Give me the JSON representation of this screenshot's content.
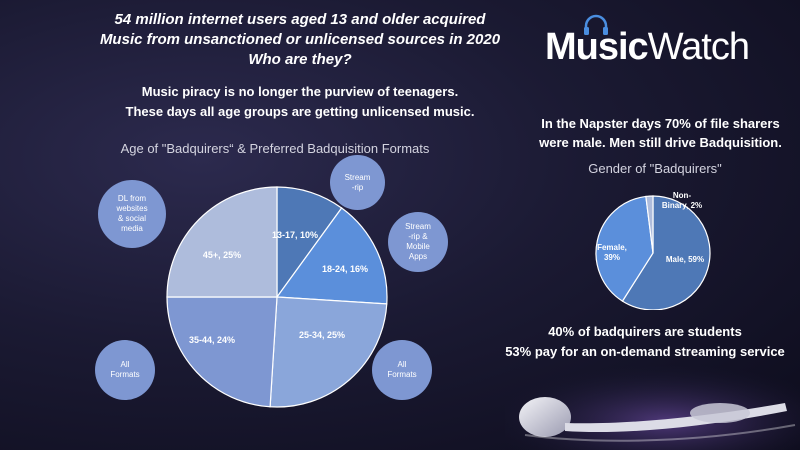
{
  "headline": {
    "line1": "54 million internet users aged 13 and older acquired",
    "line2": "Music from unsanctioned or unlicensed sources in 2020",
    "line3": "Who are they?"
  },
  "subhead": {
    "line1": "Music piracy is no longer the purview of teenagers.",
    "line2": "These days all age groups are getting unlicensed music."
  },
  "logo": {
    "bold": "Music",
    "light": "Watch"
  },
  "napster": {
    "line1": "In the Napster days 70% of file sharers",
    "line2": "were male. Men still drive Badquisition."
  },
  "stats": {
    "line1": "40% of badquirers are students",
    "line2": "53% pay for an on-demand streaming service"
  },
  "bubbles": [
    {
      "lines": [
        "DL from",
        "websites",
        "& social",
        "media"
      ]
    },
    {
      "lines": [
        "Stream",
        "-rip"
      ]
    },
    {
      "lines": [
        "Stream",
        "-rip &",
        "Mobile",
        "Apps"
      ]
    },
    {
      "lines": [
        "All",
        "Formats"
      ]
    },
    {
      "lines": [
        "All",
        "Formats"
      ]
    }
  ],
  "chart_data": [
    {
      "type": "pie",
      "title": "Age of \"Badquirers“ & Preferred Badquisition Formats",
      "slices": [
        {
          "label": "13-17, 10%",
          "value": 10,
          "color": "#4e78b6"
        },
        {
          "label": "18-24, 16%",
          "value": 16,
          "color": "#5b8fdb"
        },
        {
          "label": "25-34, 25%",
          "value": 25,
          "color": "#8aa6da"
        },
        {
          "label": "35-44, 24%",
          "value": 24,
          "color": "#7e97d2"
        },
        {
          "label": "45+, 25%",
          "value": 25,
          "color": "#aebcdc"
        }
      ]
    },
    {
      "type": "pie",
      "title": "Gender of \"Badquirers\"",
      "slices": [
        {
          "label": "Male, 59%",
          "value": 59,
          "color": "#4e78b6"
        },
        {
          "label": "Female, 39%",
          "value": 39,
          "color": "#5b8fdb"
        },
        {
          "label": "Non-Binary, 2%",
          "value": 2,
          "color": "#aebcdc"
        }
      ]
    }
  ]
}
